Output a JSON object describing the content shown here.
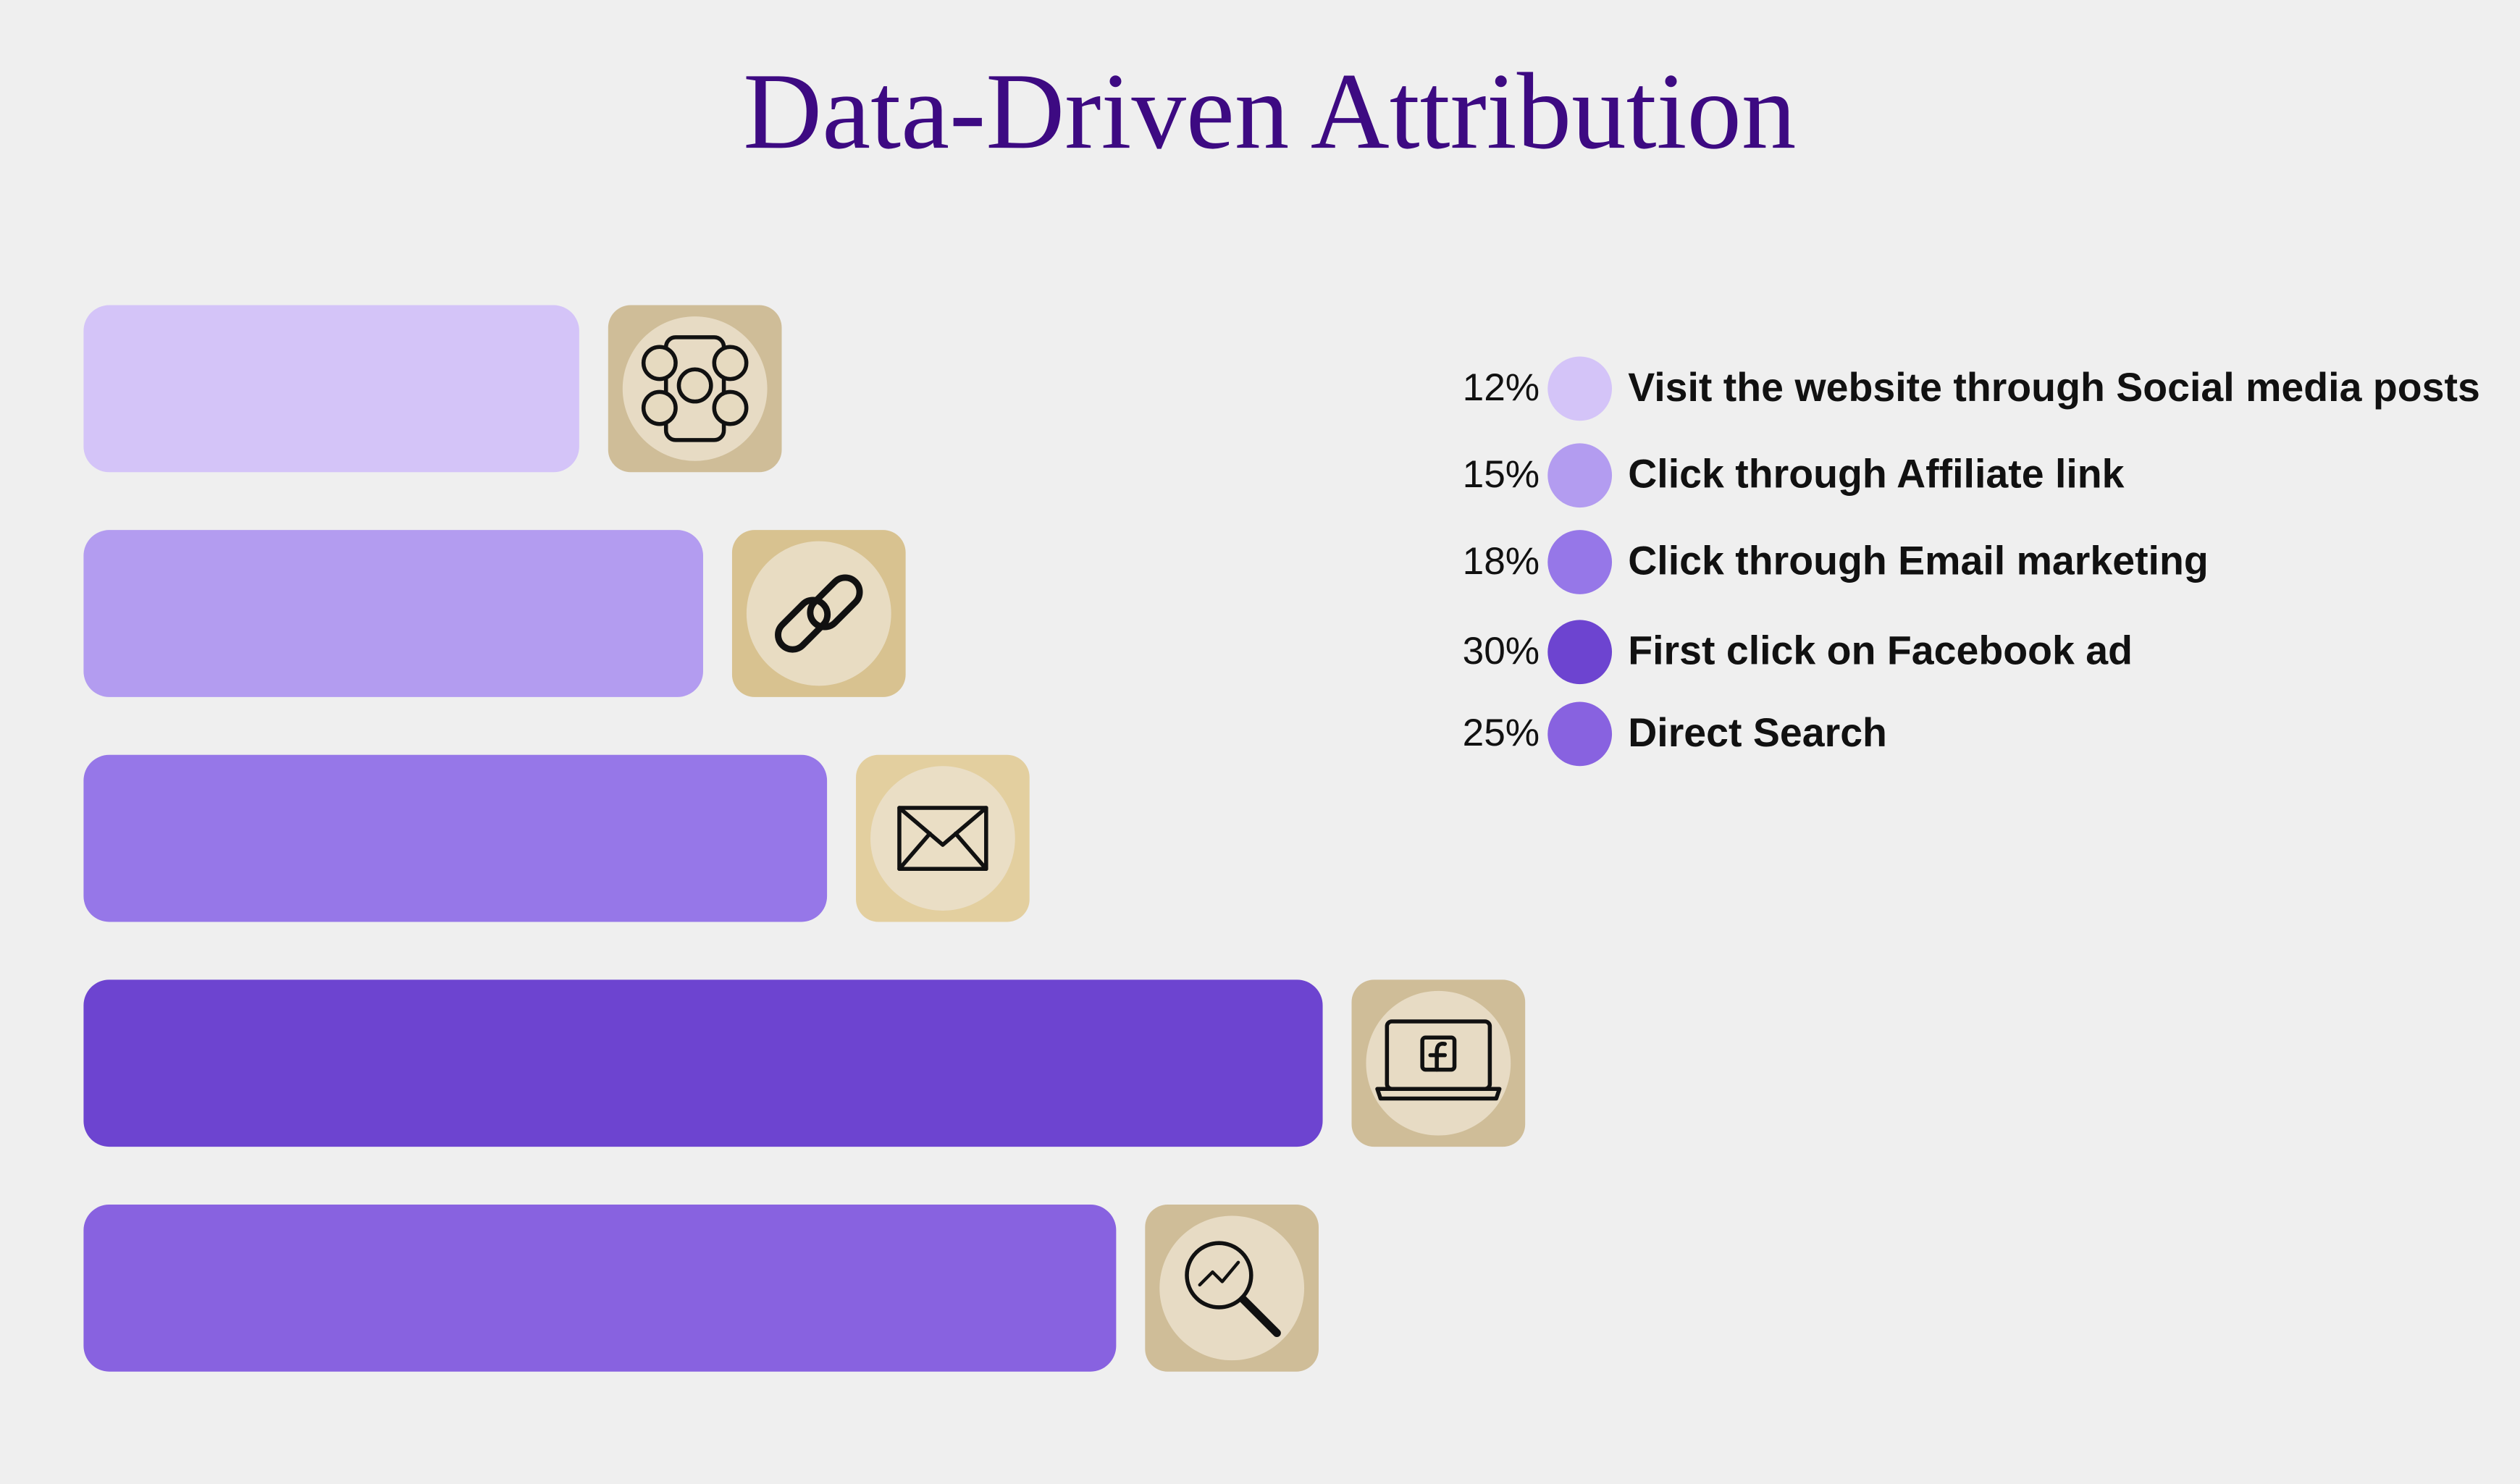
{
  "chart_data": {
    "type": "bar",
    "orientation": "horizontal",
    "title": "Data-Driven Attribution",
    "categories": [
      "Visit the website through Social media posts",
      "Click through Affiliate link",
      "Click through Email marketing",
      "First click on Facebook ad",
      "Direct Search"
    ],
    "values": [
      12,
      15,
      18,
      30,
      25
    ],
    "value_labels": [
      "12%",
      "15%",
      "18%",
      "30%",
      "25%"
    ],
    "colors": [
      "#d4c4f8",
      "#b39cf0",
      "#9677e8",
      "#6d44d0",
      "#8862e0"
    ]
  }
}
